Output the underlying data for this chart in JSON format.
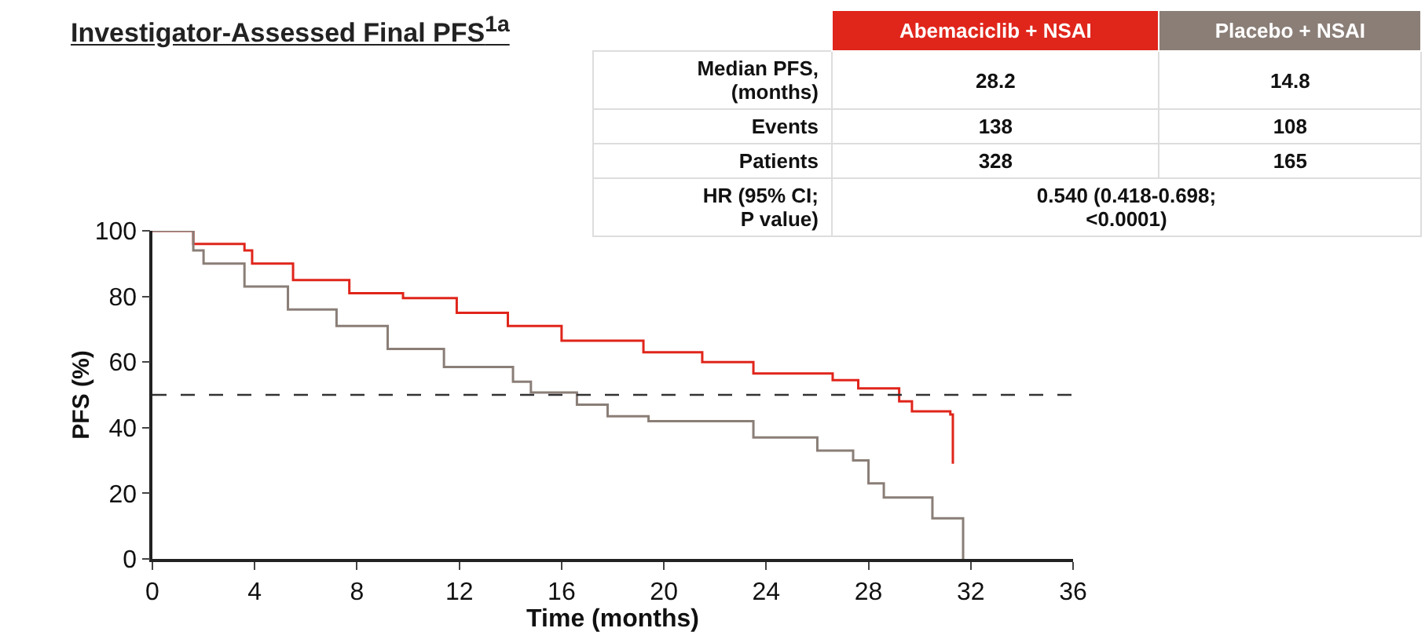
{
  "chart_data": {
    "type": "step",
    "title": "Investigator-Assessed Final PFS$^{1a}$",
    "xlabel": "Time (months)",
    "ylabel": "PFS (%)",
    "xlim": [
      0,
      36
    ],
    "xticks": [
      0,
      4,
      8,
      12,
      16,
      20,
      24,
      28,
      32,
      36
    ],
    "ylim": [
      0,
      100
    ],
    "yticks": [
      0,
      20,
      40,
      60,
      80,
      100
    ],
    "line_style": "solid",
    "legend": false,
    "grid": false,
    "series": [
      {
        "name": "Abemaciclib + NSAI",
        "color": "#e0251b",
        "x": [
          0,
          1.6,
          3.6,
          3.9,
          5.5,
          7.7,
          9.8,
          11.9,
          13.9,
          16,
          19.2,
          21.5,
          23.5,
          26.6,
          27.6,
          29.2,
          29.7,
          31.2,
          31.3
        ],
        "values": [
          100,
          96,
          94,
          90,
          85,
          81,
          79.5,
          75,
          71,
          66.5,
          63,
          60,
          56.5,
          54.5,
          52,
          48,
          45,
          44,
          29
        ]
      },
      {
        "name": "Placebo + NSAI",
        "color": "#8a7e77",
        "x": [
          0,
          1.6,
          2.0,
          3.6,
          5.3,
          7.2,
          9.2,
          11.4,
          14.1,
          14.8,
          16.6,
          17.8,
          19.4,
          23.5,
          26,
          27.4,
          28,
          28.6,
          30.5,
          31.6,
          31.7
        ],
        "values": [
          100,
          94,
          90,
          83,
          76,
          71,
          64,
          58.5,
          54,
          50.7,
          47,
          43.5,
          42,
          37,
          33,
          30,
          23,
          18.7,
          12.4,
          12.4,
          0
        ]
      }
    ],
    "ref_lines": [
      {
        "axis": "y",
        "value": 50,
        "line_style": "dashed",
        "color": "#333333"
      }
    ],
    "annotations": [
      "Median PFS,\n(months)",
      "28.2",
      "14.8",
      "Events",
      "138",
      "108",
      "Patients",
      "328",
      "165",
      "HR (95% CI;\nP value)",
      "0.540 (0.418-0.698;\n<0.0001)"
    ]
  }
}
